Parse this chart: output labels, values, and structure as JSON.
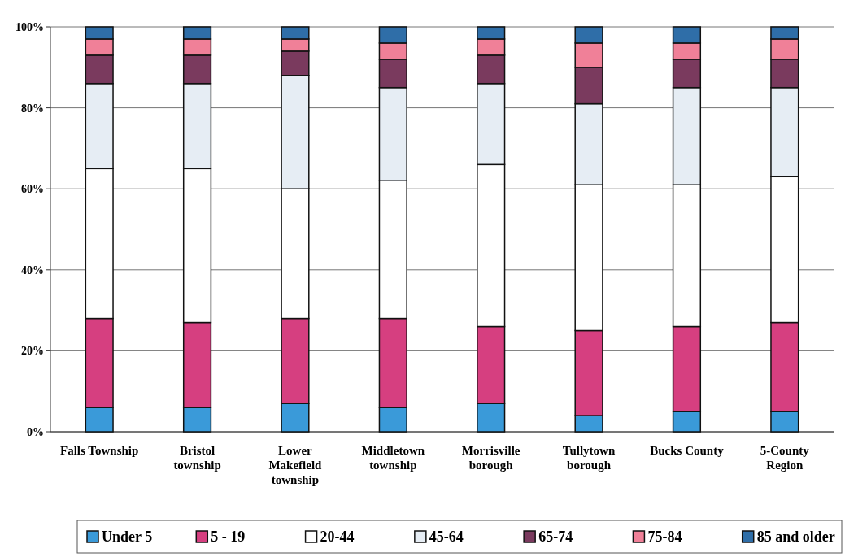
{
  "chart_data": {
    "type": "bar",
    "stacked": true,
    "categories": [
      "Falls Township",
      "Bristol township",
      "Lower Makefield township",
      "Middletown township",
      "Morrisville borough",
      "Tullytown borough",
      "Bucks County",
      "5-County Region"
    ],
    "series": [
      {
        "name": "Under 5",
        "color": "#3a9ad9",
        "values": [
          6,
          6,
          7,
          6,
          7,
          4,
          5,
          5
        ]
      },
      {
        "name": "5 - 19",
        "color": "#d63f80",
        "values": [
          22,
          21,
          21,
          22,
          19,
          21,
          21,
          22
        ]
      },
      {
        "name": "20-44",
        "color": "#ffffff",
        "values": [
          37,
          38,
          32,
          34,
          40,
          36,
          35,
          36
        ]
      },
      {
        "name": "45-64",
        "color": "#e6edf4",
        "values": [
          21,
          21,
          28,
          23,
          20,
          20,
          24,
          22
        ]
      },
      {
        "name": "65-74",
        "color": "#7a3a5e",
        "values": [
          7,
          7,
          6,
          7,
          7,
          9,
          7,
          7
        ]
      },
      {
        "name": "75-84",
        "color": "#f08098",
        "values": [
          4,
          4,
          3,
          4,
          4,
          6,
          4,
          5
        ]
      },
      {
        "name": "85 and older",
        "color": "#2f6ea8",
        "values": [
          3,
          3,
          3,
          4,
          3,
          4,
          4,
          3
        ]
      }
    ],
    "ylim": [
      0,
      100
    ],
    "yticks": [
      {
        "value": 0,
        "label": "0%"
      },
      {
        "value": 20,
        "label": "20%"
      },
      {
        "value": 40,
        "label": "40%"
      },
      {
        "value": 60,
        "label": "60%"
      },
      {
        "value": 80,
        "label": "80%"
      },
      {
        "value": 100,
        "label": "100%"
      }
    ],
    "grid": "y",
    "legend": "bottom"
  }
}
